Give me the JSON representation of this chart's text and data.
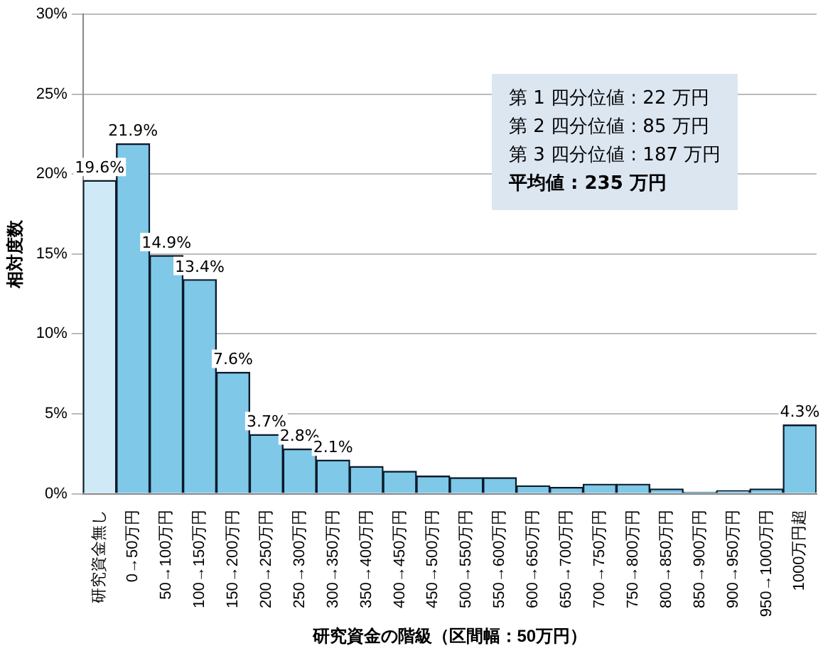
{
  "chart_data": {
    "type": "bar",
    "xlabel": "研究資金の階級（区間幅：50万円）",
    "ylabel": "相対度数",
    "categories": [
      "研究資金無し",
      "0→50万円",
      "50→100万円",
      "100→150万円",
      "150→200万円",
      "200→250万円",
      "250→300万円",
      "300→350万円",
      "350→400万円",
      "400→450万円",
      "450→500万円",
      "500→550万円",
      "550→600万円",
      "600→650万円",
      "650→700万円",
      "700→750万円",
      "750→800万円",
      "800→850万円",
      "850→900万円",
      "900→950万円",
      "950→1000万円",
      "1000万円超"
    ],
    "values": [
      19.6,
      21.9,
      14.9,
      13.4,
      7.6,
      3.7,
      2.8,
      2.1,
      1.7,
      1.4,
      1.1,
      1.0,
      1.0,
      0.5,
      0.4,
      0.6,
      0.6,
      0.3,
      0.1,
      0.2,
      0.3,
      4.3
    ],
    "value_labels": [
      "19.6%",
      "21.9%",
      "14.9%",
      "13.4%",
      "7.6%",
      "3.7%",
      "2.8%",
      "2.1%",
      null,
      null,
      null,
      null,
      null,
      null,
      null,
      null,
      null,
      null,
      null,
      null,
      null,
      "4.3%"
    ],
    "colors": [
      "#cfe9f7",
      "#7fc8e8",
      "#7fc8e8",
      "#7fc8e8",
      "#7fc8e8",
      "#7fc8e8",
      "#7fc8e8",
      "#7fc8e8",
      "#7fc8e8",
      "#7fc8e8",
      "#7fc8e8",
      "#7fc8e8",
      "#7fc8e8",
      "#7fc8e8",
      "#7fc8e8",
      "#7fc8e8",
      "#7fc8e8",
      "#7fc8e8",
      "#7fc8e8",
      "#7fc8e8",
      "#7fc8e8",
      "#7fc8e8"
    ],
    "ylim": [
      0,
      30
    ],
    "yticks": [
      {
        "value": 0,
        "label": "0%"
      },
      {
        "value": 5,
        "label": "5%"
      },
      {
        "value": 10,
        "label": "10%"
      },
      {
        "value": 15,
        "label": "15%"
      },
      {
        "value": 20,
        "label": "20%"
      },
      {
        "value": 25,
        "label": "25%"
      },
      {
        "value": 30,
        "label": "30%"
      }
    ],
    "grid": "y",
    "legend": false,
    "annotations": [
      "第 1 四分位値 : 22 万円",
      "第 2 四分位値 : 85 万円",
      "第 3 四分位値 : 187 万円",
      "平均値 : 235 万円"
    ]
  }
}
